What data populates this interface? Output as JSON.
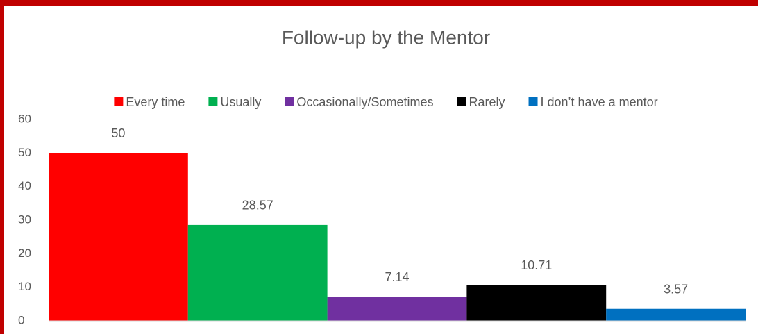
{
  "chart_data": {
    "type": "bar",
    "title": "Follow-up by the Mentor",
    "categories": [
      null
    ],
    "series": [
      {
        "name": "Every time",
        "color": "#ff0000",
        "values": [
          50
        ]
      },
      {
        "name": "Usually",
        "color": "#00b050",
        "values": [
          28.57
        ]
      },
      {
        "name": "Occasionally/Sometimes",
        "color": "#7030a0",
        "values": [
          7.14
        ]
      },
      {
        "name": "Rarely",
        "color": "#000000",
        "values": [
          10.71
        ]
      },
      {
        "name": "I don’t have a mentor",
        "color": "#0070c0",
        "values": [
          3.57
        ]
      }
    ],
    "ylim": [
      0,
      60
    ],
    "yticks": [
      0,
      10,
      20,
      30,
      40,
      50,
      60
    ],
    "grid": false,
    "legend": "top"
  }
}
